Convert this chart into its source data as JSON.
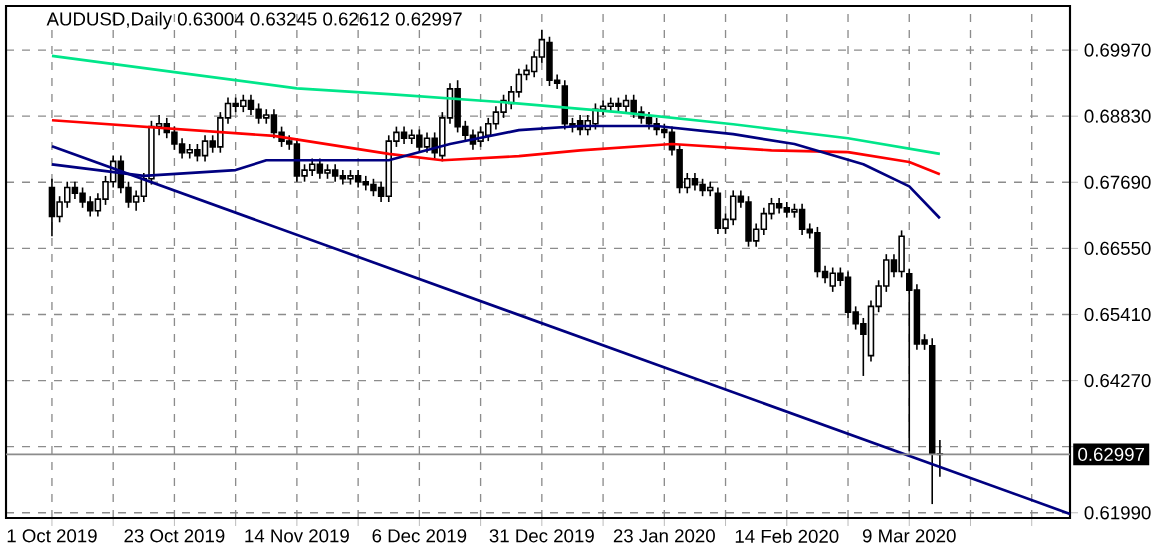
{
  "chart_data": {
    "type": "candlestick",
    "title": "AUDUSD,Daily 0.63004 0.63245 0.62612 0.62997",
    "categories": [
      "1 Oct 2019",
      null,
      null,
      null,
      null,
      null,
      null,
      null,
      null,
      null,
      null,
      null,
      null,
      null,
      null,
      null,
      "23 Oct 2019",
      null,
      null,
      null,
      null,
      null,
      null,
      null,
      null,
      null,
      null,
      null,
      null,
      null,
      null,
      null,
      "14 Nov 2019",
      null,
      null,
      null,
      null,
      null,
      null,
      null,
      null,
      null,
      null,
      null,
      null,
      null,
      null,
      null,
      "6 Dec 2019",
      null,
      null,
      null,
      null,
      null,
      null,
      null,
      null,
      null,
      null,
      null,
      null,
      null,
      null,
      null,
      "31 Dec 2019",
      null,
      null,
      null,
      null,
      null,
      null,
      null,
      null,
      null,
      null,
      null,
      null,
      null,
      null,
      null,
      "23 Jan 2020",
      null,
      null,
      null,
      null,
      null,
      null,
      null,
      null,
      null,
      null,
      null,
      null,
      null,
      null,
      null,
      "14 Feb 2020",
      null,
      null,
      null,
      null,
      null,
      null,
      null,
      null,
      null,
      null,
      null,
      null,
      null,
      null,
      null,
      "9 Mar 2020",
      null,
      null,
      null,
      null,
      null,
      null,
      null,
      null,
      null,
      null,
      null,
      null,
      null,
      null,
      null,
      null,
      null,
      null,
      null,
      null,
      null
    ],
    "ohlc": [
      [
        0.676,
        0.6775,
        0.6676,
        0.671
      ],
      [
        0.671,
        0.6745,
        0.67,
        0.6735
      ],
      [
        0.6735,
        0.677,
        0.6725,
        0.676
      ],
      [
        0.676,
        0.677,
        0.674,
        0.675
      ],
      [
        0.675,
        0.676,
        0.6725,
        0.6735
      ],
      [
        0.6735,
        0.6745,
        0.671,
        0.672
      ],
      [
        0.672,
        0.675,
        0.671,
        0.674
      ],
      [
        0.674,
        0.678,
        0.673,
        0.677
      ],
      [
        0.677,
        0.6815,
        0.676,
        0.6805
      ],
      [
        0.6805,
        0.6815,
        0.675,
        0.676
      ],
      [
        0.676,
        0.677,
        0.6725,
        0.6735
      ],
      [
        0.6735,
        0.6755,
        0.672,
        0.6745
      ],
      [
        0.6745,
        0.6785,
        0.6735,
        0.6775
      ],
      [
        0.6775,
        0.6875,
        0.6765,
        0.6865
      ],
      [
        0.6865,
        0.6885,
        0.685,
        0.687
      ],
      [
        0.687,
        0.688,
        0.6845,
        0.6855
      ],
      [
        0.6855,
        0.6865,
        0.6825,
        0.6835
      ],
      [
        0.6835,
        0.6845,
        0.681,
        0.682
      ],
      [
        0.682,
        0.6835,
        0.681,
        0.6825
      ],
      [
        0.6825,
        0.6835,
        0.6805,
        0.6815
      ],
      [
        0.6815,
        0.685,
        0.6805,
        0.684
      ],
      [
        0.684,
        0.685,
        0.682,
        0.683
      ],
      [
        0.683,
        0.689,
        0.682,
        0.688
      ],
      [
        0.688,
        0.6915,
        0.687,
        0.6905
      ],
      [
        0.6905,
        0.6915,
        0.689,
        0.69
      ],
      [
        0.69,
        0.692,
        0.689,
        0.691
      ],
      [
        0.691,
        0.692,
        0.6885,
        0.6895
      ],
      [
        0.6895,
        0.6905,
        0.687,
        0.688
      ],
      [
        0.688,
        0.6895,
        0.687,
        0.6885
      ],
      [
        0.6885,
        0.6895,
        0.6845,
        0.6855
      ],
      [
        0.6855,
        0.6865,
        0.683,
        0.684
      ],
      [
        0.684,
        0.685,
        0.6825,
        0.6835
      ],
      [
        0.6835,
        0.6845,
        0.677,
        0.678
      ],
      [
        0.678,
        0.68,
        0.677,
        0.679
      ],
      [
        0.679,
        0.681,
        0.678,
        0.68
      ],
      [
        0.68,
        0.681,
        0.6775,
        0.6785
      ],
      [
        0.6785,
        0.68,
        0.6775,
        0.679
      ],
      [
        0.679,
        0.68,
        0.677,
        0.678
      ],
      [
        0.678,
        0.679,
        0.6765,
        0.6775
      ],
      [
        0.6775,
        0.679,
        0.6765,
        0.678
      ],
      [
        0.678,
        0.679,
        0.676,
        0.677
      ],
      [
        0.677,
        0.678,
        0.6755,
        0.6765
      ],
      [
        0.6765,
        0.6775,
        0.6745,
        0.6755
      ],
      [
        0.676,
        0.677,
        0.6735,
        0.6745
      ],
      [
        0.6745,
        0.685,
        0.6735,
        0.684
      ],
      [
        0.684,
        0.6865,
        0.683,
        0.6855
      ],
      [
        0.6855,
        0.6865,
        0.6835,
        0.6845
      ],
      [
        0.6845,
        0.686,
        0.6835,
        0.685
      ],
      [
        0.685,
        0.686,
        0.682,
        0.683
      ],
      [
        0.683,
        0.6855,
        0.682,
        0.6845
      ],
      [
        0.6845,
        0.6855,
        0.681,
        0.682
      ],
      [
        0.6815,
        0.689,
        0.6805,
        0.688
      ],
      [
        0.688,
        0.694,
        0.687,
        0.693
      ],
      [
        0.693,
        0.6945,
        0.6855,
        0.6865
      ],
      [
        0.6865,
        0.6875,
        0.684,
        0.685
      ],
      [
        0.685,
        0.686,
        0.6825,
        0.6835
      ],
      [
        0.684,
        0.6865,
        0.683,
        0.6855
      ],
      [
        0.685,
        0.688,
        0.684,
        0.687
      ],
      [
        0.687,
        0.69,
        0.686,
        0.689
      ],
      [
        0.689,
        0.692,
        0.688,
        0.691
      ],
      [
        0.6905,
        0.6935,
        0.6895,
        0.6925
      ],
      [
        0.6925,
        0.6965,
        0.6915,
        0.6955
      ],
      [
        0.6955,
        0.6972,
        0.6945,
        0.6962
      ],
      [
        0.696,
        0.6995,
        0.695,
        0.6985
      ],
      [
        0.6985,
        0.7032,
        0.6975,
        0.7015
      ],
      [
        0.701,
        0.702,
        0.6935,
        0.6945
      ],
      [
        0.6945,
        0.6955,
        0.693,
        0.694
      ],
      [
        0.6935,
        0.6945,
        0.686,
        0.687
      ],
      [
        0.687,
        0.688,
        0.6855,
        0.6865
      ],
      [
        0.6875,
        0.6885,
        0.685,
        0.686
      ],
      [
        0.686,
        0.6885,
        0.685,
        0.6875
      ],
      [
        0.687,
        0.6905,
        0.686,
        0.6895
      ],
      [
        0.6895,
        0.691,
        0.6885,
        0.69
      ],
      [
        0.69,
        0.6915,
        0.689,
        0.6905
      ],
      [
        0.6905,
        0.6915,
        0.689,
        0.69
      ],
      [
        0.69,
        0.692,
        0.689,
        0.691
      ],
      [
        0.691,
        0.692,
        0.688,
        0.689
      ],
      [
        0.689,
        0.69,
        0.687,
        0.688
      ],
      [
        0.688,
        0.689,
        0.686,
        0.687
      ],
      [
        0.687,
        0.688,
        0.685,
        0.686
      ],
      [
        0.686,
        0.687,
        0.6845,
        0.6855
      ],
      [
        0.6855,
        0.6865,
        0.6815,
        0.6825
      ],
      [
        0.6825,
        0.6835,
        0.675,
        0.676
      ],
      [
        0.676,
        0.6785,
        0.675,
        0.6775
      ],
      [
        0.6775,
        0.6785,
        0.6755,
        0.6765
      ],
      [
        0.6765,
        0.6775,
        0.6745,
        0.6755
      ],
      [
        0.6755,
        0.677,
        0.6745,
        0.676
      ],
      [
        0.675,
        0.676,
        0.668,
        0.669
      ],
      [
        0.669,
        0.6715,
        0.668,
        0.6705
      ],
      [
        0.6705,
        0.6755,
        0.6695,
        0.6745
      ],
      [
        0.6745,
        0.6755,
        0.6725,
        0.6735
      ],
      [
        0.6735,
        0.6745,
        0.6658,
        0.6668
      ],
      [
        0.6668,
        0.6698,
        0.6658,
        0.6688
      ],
      [
        0.6688,
        0.6725,
        0.6678,
        0.6715
      ],
      [
        0.6715,
        0.6742,
        0.6705,
        0.6732
      ],
      [
        0.6732,
        0.6742,
        0.6715,
        0.6725
      ],
      [
        0.6725,
        0.6735,
        0.6708,
        0.6718
      ],
      [
        0.6718,
        0.6732,
        0.6708,
        0.6722
      ],
      [
        0.6722,
        0.6732,
        0.6678,
        0.6688
      ],
      [
        0.6688,
        0.6698,
        0.6672,
        0.6682
      ],
      [
        0.6682,
        0.6692,
        0.6605,
        0.6615
      ],
      [
        0.6615,
        0.6625,
        0.6595,
        0.6605
      ],
      [
        0.659,
        0.6622,
        0.658,
        0.6612
      ],
      [
        0.6612,
        0.6622,
        0.659,
        0.66
      ],
      [
        0.6605,
        0.6615,
        0.6535,
        0.6545
      ],
      [
        0.6545,
        0.6555,
        0.6515,
        0.6525
      ],
      [
        0.6525,
        0.6535,
        0.6435,
        0.6507
      ],
      [
        0.647,
        0.6565,
        0.646,
        0.6555
      ],
      [
        0.6555,
        0.66,
        0.6545,
        0.659
      ],
      [
        0.659,
        0.6645,
        0.658,
        0.6635
      ],
      [
        0.6635,
        0.6645,
        0.6605,
        0.6615
      ],
      [
        0.6615,
        0.6686,
        0.6605,
        0.6676
      ],
      [
        0.6611,
        0.662,
        0.6305,
        0.6583
      ],
      [
        0.6583,
        0.6593,
        0.648,
        0.649
      ],
      [
        0.6497,
        0.6507,
        0.648,
        0.649
      ],
      [
        0.6487,
        0.65,
        0.6214,
        0.63
      ],
      [
        0.63004,
        0.63245,
        0.62612,
        0.62997
      ],
      null,
      null,
      null,
      null,
      null,
      null,
      null,
      null,
      null,
      null,
      null,
      null,
      null,
      null,
      null,
      null,
      null
    ],
    "series": [
      {
        "type": "line",
        "color": "#00e68a",
        "values": [
          0.6987,
          null,
          null,
          null,
          null,
          null,
          null,
          null,
          null,
          null,
          null,
          null,
          null,
          null,
          null,
          null,
          0.6959,
          null,
          null,
          null,
          null,
          null,
          null,
          null,
          null,
          null,
          null,
          null,
          null,
          null,
          null,
          null,
          0.6931,
          null,
          null,
          null,
          null,
          null,
          null,
          null,
          null,
          null,
          null,
          null,
          0.6921,
          null,
          null,
          null,
          null,
          null,
          null,
          null,
          null,
          null,
          null,
          null,
          null,
          null,
          null,
          0.6907,
          null,
          null,
          null,
          null,
          null,
          null,
          null,
          null,
          null,
          null,
          null,
          null,
          null,
          null,
          0.689,
          null,
          null,
          null,
          null,
          null,
          null,
          null,
          null,
          null,
          null,
          null,
          null,
          null,
          null,
          0.6869,
          null,
          null,
          null,
          null,
          null,
          null,
          null,
          null,
          null,
          null,
          null,
          null,
          null,
          null,
          0.6845,
          null,
          null,
          null,
          null,
          null,
          null,
          null,
          null,
          null,
          null,
          null,
          0.6818,
          null,
          null,
          null,
          null,
          null,
          null,
          null,
          null,
          null,
          null,
          null,
          null,
          null,
          null,
          null,
          null,
          null
        ]
      },
      {
        "type": "line",
        "color": "#ff0000",
        "values": [
          0.6876,
          null,
          null,
          null,
          null,
          null,
          null,
          null,
          null,
          null,
          null,
          null,
          null,
          null,
          null,
          null,
          null,
          null,
          null,
          null,
          null,
          null,
          null,
          null,
          null,
          null,
          null,
          null,
          null,
          0.6849,
          null,
          null,
          null,
          null,
          null,
          null,
          null,
          null,
          null,
          null,
          null,
          null,
          null,
          null,
          0.6818,
          null,
          null,
          null,
          null,
          null,
          null,
          0.6807,
          null,
          null,
          null,
          null,
          null,
          null,
          null,
          null,
          null,
          0.6814,
          null,
          null,
          null,
          null,
          null,
          null,
          null,
          0.6824,
          null,
          null,
          null,
          null,
          null,
          null,
          null,
          null,
          null,
          null,
          null,
          0.6835,
          null,
          null,
          null,
          null,
          null,
          null,
          null,
          null,
          null,
          null,
          null,
          null,
          0.6824,
          null,
          null,
          null,
          null,
          null,
          null,
          null,
          null,
          null,
          0.6821,
          null,
          null,
          null,
          null,
          null,
          null,
          null,
          0.6804,
          null,
          null,
          null,
          0.6783,
          null,
          null,
          null,
          null,
          null,
          null,
          null,
          null,
          null,
          null,
          null,
          null,
          null,
          null,
          null,
          null,
          null
        ]
      },
      {
        "type": "line",
        "color": "#000080",
        "values": [
          0.68,
          null,
          null,
          null,
          null,
          null,
          null,
          null,
          null,
          null,
          null,
          null,
          0.678,
          null,
          null,
          null,
          null,
          null,
          null,
          null,
          null,
          null,
          null,
          null,
          0.679,
          null,
          null,
          null,
          0.6807,
          null,
          null,
          null,
          null,
          null,
          null,
          null,
          null,
          null,
          null,
          null,
          null,
          null,
          null,
          null,
          0.6807,
          null,
          null,
          null,
          null,
          null,
          null,
          null,
          0.6835,
          null,
          null,
          null,
          null,
          null,
          null,
          null,
          null,
          0.6859,
          null,
          null,
          null,
          null,
          null,
          null,
          null,
          0.6866,
          null,
          null,
          null,
          null,
          null,
          null,
          null,
          null,
          null,
          0.6866,
          null,
          null,
          null,
          null,
          null,
          null,
          null,
          null,
          null,
          0.6852,
          null,
          null,
          null,
          null,
          null,
          null,
          null,
          0.6835,
          null,
          null,
          null,
          null,
          null,
          null,
          null,
          null,
          0.68,
          null,
          null,
          null,
          null,
          null,
          0.6762,
          null,
          null,
          null,
          0.6707,
          null,
          null,
          null,
          null,
          null,
          null,
          null,
          null,
          null,
          null,
          null,
          null,
          null,
          null,
          null,
          null,
          null
        ]
      },
      {
        "type": "line",
        "color": "#000080",
        "values": [
          0.6831,
          null,
          null,
          null,
          null,
          null,
          null,
          null,
          null,
          null,
          null,
          null,
          null,
          null,
          null,
          null,
          null,
          null,
          null,
          null,
          null,
          null,
          null,
          null,
          null,
          null,
          null,
          null,
          null,
          null,
          null,
          null,
          null,
          null,
          null,
          null,
          null,
          null,
          null,
          null,
          null,
          null,
          null,
          null,
          null,
          null,
          null,
          null,
          null,
          null,
          null,
          null,
          null,
          null,
          null,
          null,
          null,
          null,
          null,
          null,
          null,
          null,
          null,
          null,
          null,
          null,
          null,
          null,
          null,
          null,
          null,
          null,
          null,
          null,
          null,
          null,
          null,
          null,
          null,
          null,
          null,
          null,
          null,
          null,
          null,
          null,
          null,
          null,
          null,
          null,
          null,
          null,
          null,
          null,
          null,
          null,
          null,
          null,
          null,
          null,
          null,
          null,
          null,
          null,
          null,
          null,
          null,
          null,
          null,
          null,
          null,
          null,
          null,
          null,
          null,
          null,
          null,
          null,
          null,
          null,
          null,
          null,
          null,
          null,
          null,
          null,
          null,
          null,
          null,
          null,
          null,
          null,
          null,
          0.6197
        ]
      }
    ],
    "ylim": [
      0.619,
      0.7073
    ],
    "yticks": [
      {
        "value": 0.6199,
        "label": "0.61990"
      },
      {
        "value": 0.6313,
        "label": null
      },
      {
        "value": 0.6427,
        "label": "0.64270"
      },
      {
        "value": 0.6541,
        "label": "0.65410"
      },
      {
        "value": 0.6655,
        "label": "0.66550"
      },
      {
        "value": 0.6769,
        "label": "0.67690"
      },
      {
        "value": 0.6883,
        "label": "0.68830"
      },
      {
        "value": 0.6997,
        "label": "0.69970"
      }
    ],
    "ref_lines": [
      {
        "axis": "y",
        "value": 0.62997,
        "label": "0.62997",
        "color": "#8c8c8c"
      }
    ],
    "grid": true
  }
}
